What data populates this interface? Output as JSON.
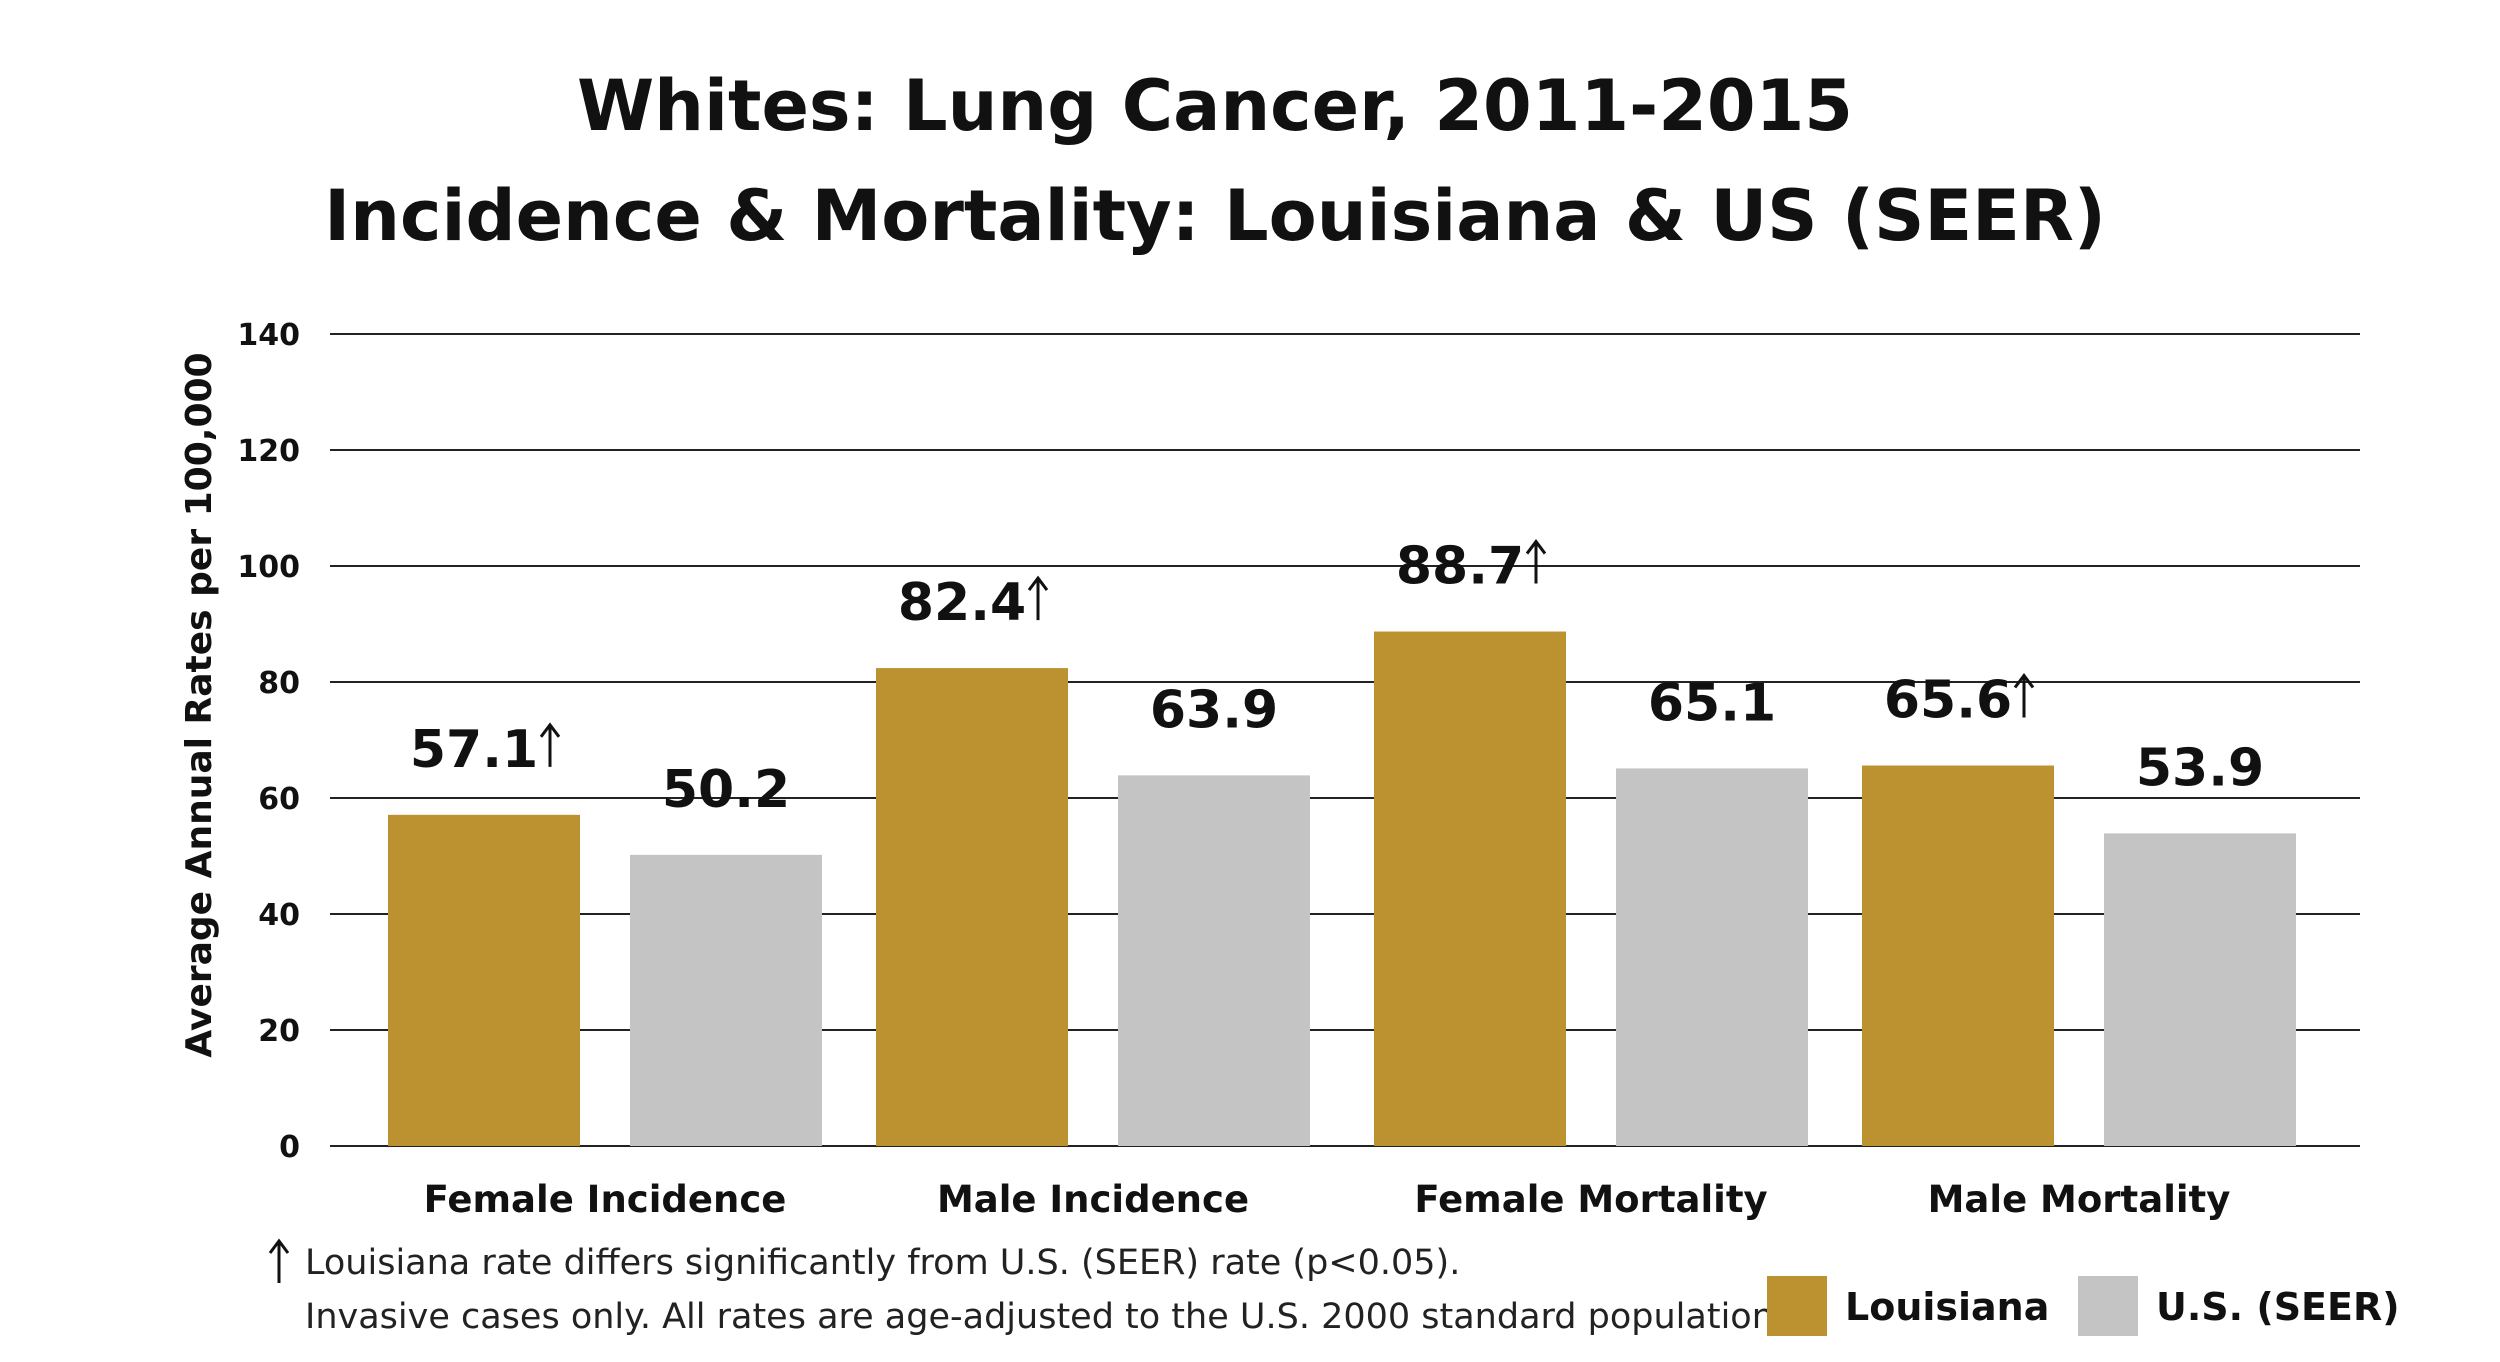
{
  "chart_data": {
    "type": "bar",
    "title": [
      "Whites: Lung Cancer, 2011-2015",
      "Incidence & Mortality: Louisiana & US (SEER)"
    ],
    "ylabel": "Average Annual Rates per 100,000",
    "xlabel": "",
    "ylim": [
      0,
      140
    ],
    "yticks": [
      0,
      20,
      40,
      60,
      80,
      100,
      120,
      140
    ],
    "grid": true,
    "legend_position": "bottom-right",
    "categories": [
      "Female Incidence",
      "Male Incidence",
      "Female Mortality",
      "Male Mortality"
    ],
    "series": [
      {
        "name": "Louisiana",
        "color": "#bc9130",
        "values": [
          57.1,
          82.4,
          88.7,
          65.6
        ],
        "labels": [
          "57.1",
          "82.4",
          "88.7",
          "65.6"
        ],
        "significant": [
          true,
          true,
          true,
          true
        ]
      },
      {
        "name": "U.S. (SEER)",
        "color": "#c4c4c4",
        "values": [
          50.2,
          63.9,
          65.1,
          53.9
        ],
        "labels": [
          "50.2",
          "63.9",
          "65.1",
          "53.9"
        ],
        "significant": [
          false,
          false,
          false,
          false
        ]
      }
    ],
    "footnotes": [
      "Louisiana rate differs significantly from U.S. (SEER) rate (p<0.05).",
      "Invasive cases only. All rates are age-adjusted to the U.S. 2000 standard population."
    ]
  }
}
